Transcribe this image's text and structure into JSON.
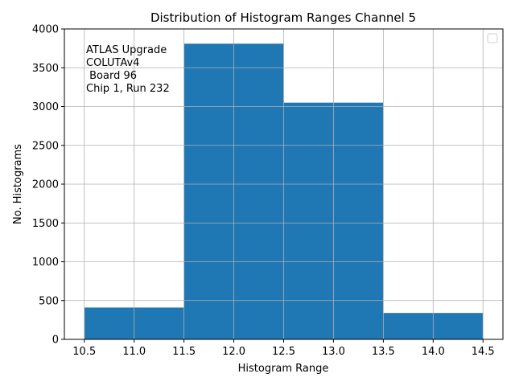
{
  "chart_data": {
    "type": "bar",
    "title": "Distribution of Histogram Ranges Channel 5",
    "xlabel": "Histogram Range",
    "ylabel": "No. Histograms",
    "bins": [
      {
        "x0": 10.5,
        "x1": 11.5,
        "value": 410
      },
      {
        "x0": 11.5,
        "x1": 12.5,
        "value": 3810
      },
      {
        "x0": 12.5,
        "x1": 13.5,
        "value": 3050
      },
      {
        "x0": 13.5,
        "x1": 14.5,
        "value": 340
      }
    ],
    "xlim": [
      10.3,
      14.7
    ],
    "ylim": [
      0,
      4000
    ],
    "xticks": [
      "10.5",
      "11.0",
      "11.5",
      "12.0",
      "12.5",
      "13.0",
      "13.5",
      "14.0",
      "14.5"
    ],
    "yticks": [
      "0",
      "500",
      "1000",
      "1500",
      "2000",
      "2500",
      "3000",
      "3500",
      "4000"
    ],
    "annotation_lines": [
      "ATLAS Upgrade",
      "COLUTAv4",
      " Board 96",
      "Chip 1, Run 232"
    ],
    "grid": true,
    "legend": "top-right",
    "colors": {
      "bar": "#1f77b4",
      "grid": "#b0b0b0",
      "axis": "#000000"
    }
  }
}
